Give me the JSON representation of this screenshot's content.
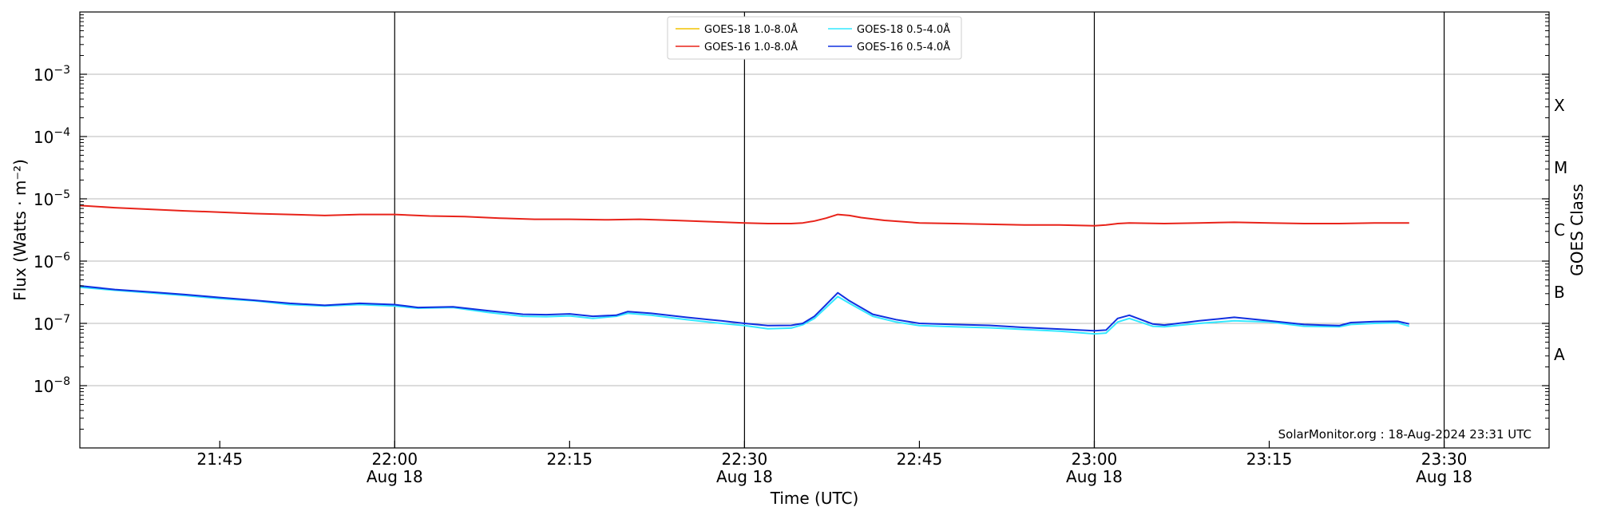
{
  "chart_data": {
    "type": "line",
    "xlabel": "Time (UTC)",
    "ylabel": "Flux (Watts · m⁻²)",
    "y2label": "GOES Class",
    "yscale": "log",
    "xlim": [
      "21:33",
      "23:39"
    ],
    "ylim": [
      1e-09,
      0.01
    ],
    "grid": "horizontal",
    "legend_position": "top-center",
    "x_ticks": [
      {
        "label": "21:45",
        "date": ""
      },
      {
        "label": "22:00",
        "date": "Aug 18"
      },
      {
        "label": "22:15",
        "date": ""
      },
      {
        "label": "22:30",
        "date": "Aug 18"
      },
      {
        "label": "22:45",
        "date": ""
      },
      {
        "label": "23:00",
        "date": "Aug 18"
      },
      {
        "label": "23:15",
        "date": ""
      },
      {
        "label": "23:30",
        "date": "Aug 18"
      }
    ],
    "y_ticks": [
      {
        "label": "10",
        "exp": "−8",
        "value": 1e-08
      },
      {
        "label": "10",
        "exp": "−7",
        "value": 1e-07
      },
      {
        "label": "10",
        "exp": "−6",
        "value": 1e-06
      },
      {
        "label": "10",
        "exp": "−5",
        "value": 1e-05
      },
      {
        "label": "10",
        "exp": "−4",
        "value": 0.0001
      },
      {
        "label": "10",
        "exp": "−3",
        "value": 0.001
      }
    ],
    "class_labels": [
      {
        "label": "A",
        "value": 3.16e-08
      },
      {
        "label": "B",
        "value": 3.16e-07
      },
      {
        "label": "C",
        "value": 3.16e-06
      },
      {
        "label": "M",
        "value": 3.16e-05
      },
      {
        "label": "X",
        "value": 0.000316
      }
    ],
    "vlines": [
      "22:00",
      "22:30",
      "23:00",
      "23:30"
    ],
    "credit": "SolarMonitor.org : 18-Aug-2024 23:31 UTC",
    "series": [
      {
        "name": "GOES-18 1.0-8.0Å",
        "color": "#f2c200",
        "x": [],
        "y": []
      },
      {
        "name": "GOES-16 1.0-8.0Å",
        "color": "#e8231a",
        "x": [
          "21:33",
          "21:36",
          "21:39",
          "21:42",
          "21:45",
          "21:48",
          "21:51",
          "21:54",
          "21:57",
          "22:00",
          "22:03",
          "22:06",
          "22:09",
          "22:12",
          "22:15",
          "22:18",
          "22:21",
          "22:24",
          "22:27",
          "22:30",
          "22:32",
          "22:34",
          "22:35",
          "22:36",
          "22:37",
          "22:38",
          "22:39",
          "22:40",
          "22:42",
          "22:45",
          "22:48",
          "22:51",
          "22:54",
          "22:57",
          "23:00",
          "23:01",
          "23:02",
          "23:03",
          "23:06",
          "23:09",
          "23:12",
          "23:15",
          "23:18",
          "23:21",
          "23:24",
          "23:27"
        ],
        "y": [
          7.8e-06,
          7.2e-06,
          6.8e-06,
          6.4e-06,
          6.1e-06,
          5.8e-06,
          5.6e-06,
          5.4e-06,
          5.6e-06,
          5.6e-06,
          5.3e-06,
          5.2e-06,
          4.9e-06,
          4.7e-06,
          4.7e-06,
          4.6e-06,
          4.7e-06,
          4.5e-06,
          4.3e-06,
          4.1e-06,
          4e-06,
          4e-06,
          4.1e-06,
          4.4e-06,
          4.9e-06,
          5.6e-06,
          5.4e-06,
          5e-06,
          4.5e-06,
          4.1e-06,
          4e-06,
          3.9e-06,
          3.8e-06,
          3.8e-06,
          3.7e-06,
          3.8e-06,
          4e-06,
          4.1e-06,
          4e-06,
          4.1e-06,
          4.2e-06,
          4.1e-06,
          4e-06,
          4e-06,
          4.1e-06,
          4.1e-06
        ]
      },
      {
        "name": "GOES-18 0.5-4.0Å",
        "color": "#33e8ff",
        "x": [
          "21:33",
          "21:36",
          "21:39",
          "21:42",
          "21:45",
          "21:48",
          "21:51",
          "21:54",
          "21:57",
          "22:00",
          "22:02",
          "22:05",
          "22:08",
          "22:11",
          "22:13",
          "22:15",
          "22:17",
          "22:19",
          "22:20",
          "22:22",
          "22:25",
          "22:28",
          "22:30",
          "22:32",
          "22:34",
          "22:35",
          "22:36",
          "22:37",
          "22:38",
          "22:39",
          "22:41",
          "22:43",
          "22:45",
          "22:48",
          "22:51",
          "22:54",
          "22:57",
          "23:00",
          "23:01",
          "23:02",
          "23:03",
          "23:05",
          "23:06",
          "23:09",
          "23:12",
          "23:15",
          "23:18",
          "23:21",
          "23:22",
          "23:24",
          "23:26",
          "23:27"
        ],
        "y": [
          3.8e-07,
          3.4e-07,
          3.1e-07,
          2.8e-07,
          2.5e-07,
          2.3e-07,
          2e-07,
          1.9e-07,
          2e-07,
          1.9e-07,
          1.75e-07,
          1.8e-07,
          1.5e-07,
          1.3e-07,
          1.28e-07,
          1.32e-07,
          1.2e-07,
          1.3e-07,
          1.45e-07,
          1.35e-07,
          1.15e-07,
          1e-07,
          9.2e-08,
          8.2e-08,
          8.4e-08,
          9.5e-08,
          1.2e-07,
          1.8e-07,
          2.7e-07,
          2.1e-07,
          1.3e-07,
          1.05e-07,
          9.2e-08,
          8.8e-08,
          8.5e-08,
          8e-08,
          7.5e-08,
          6.8e-08,
          7e-08,
          1.05e-07,
          1.2e-07,
          9e-08,
          8.8e-08,
          1e-07,
          1.1e-07,
          1.05e-07,
          9e-08,
          8.8e-08,
          9.6e-08,
          1e-07,
          1.02e-07,
          9e-08
        ]
      },
      {
        "name": "GOES-16 0.5-4.0Å",
        "color": "#1030e0",
        "x": [
          "21:33",
          "21:36",
          "21:39",
          "21:42",
          "21:45",
          "21:48",
          "21:51",
          "21:54",
          "21:57",
          "22:00",
          "22:02",
          "22:05",
          "22:08",
          "22:11",
          "22:13",
          "22:15",
          "22:17",
          "22:19",
          "22:20",
          "22:22",
          "22:25",
          "22:28",
          "22:30",
          "22:32",
          "22:34",
          "22:35",
          "22:36",
          "22:37",
          "22:38",
          "22:39",
          "22:41",
          "22:43",
          "22:45",
          "22:48",
          "22:51",
          "22:54",
          "22:57",
          "23:00",
          "23:01",
          "23:02",
          "23:03",
          "23:05",
          "23:06",
          "23:09",
          "23:12",
          "23:15",
          "23:18",
          "23:21",
          "23:22",
          "23:24",
          "23:26",
          "23:27"
        ],
        "y": [
          4e-07,
          3.5e-07,
          3.2e-07,
          2.9e-07,
          2.6e-07,
          2.35e-07,
          2.1e-07,
          1.95e-07,
          2.1e-07,
          2e-07,
          1.8e-07,
          1.85e-07,
          1.6e-07,
          1.4e-07,
          1.38e-07,
          1.42e-07,
          1.3e-07,
          1.35e-07,
          1.55e-07,
          1.45e-07,
          1.25e-07,
          1.1e-07,
          1e-07,
          9.2e-08,
          9.3e-08,
          1e-07,
          1.3e-07,
          2e-07,
          3.1e-07,
          2.3e-07,
          1.4e-07,
          1.15e-07,
          1e-07,
          9.6e-08,
          9.3e-08,
          8.6e-08,
          8.1e-08,
          7.6e-08,
          7.8e-08,
          1.2e-07,
          1.35e-07,
          9.8e-08,
          9.4e-08,
          1.1e-07,
          1.25e-07,
          1.1e-07,
          9.6e-08,
          9.2e-08,
          1.03e-07,
          1.07e-07,
          1.08e-07,
          9.8e-08
        ]
      }
    ]
  }
}
